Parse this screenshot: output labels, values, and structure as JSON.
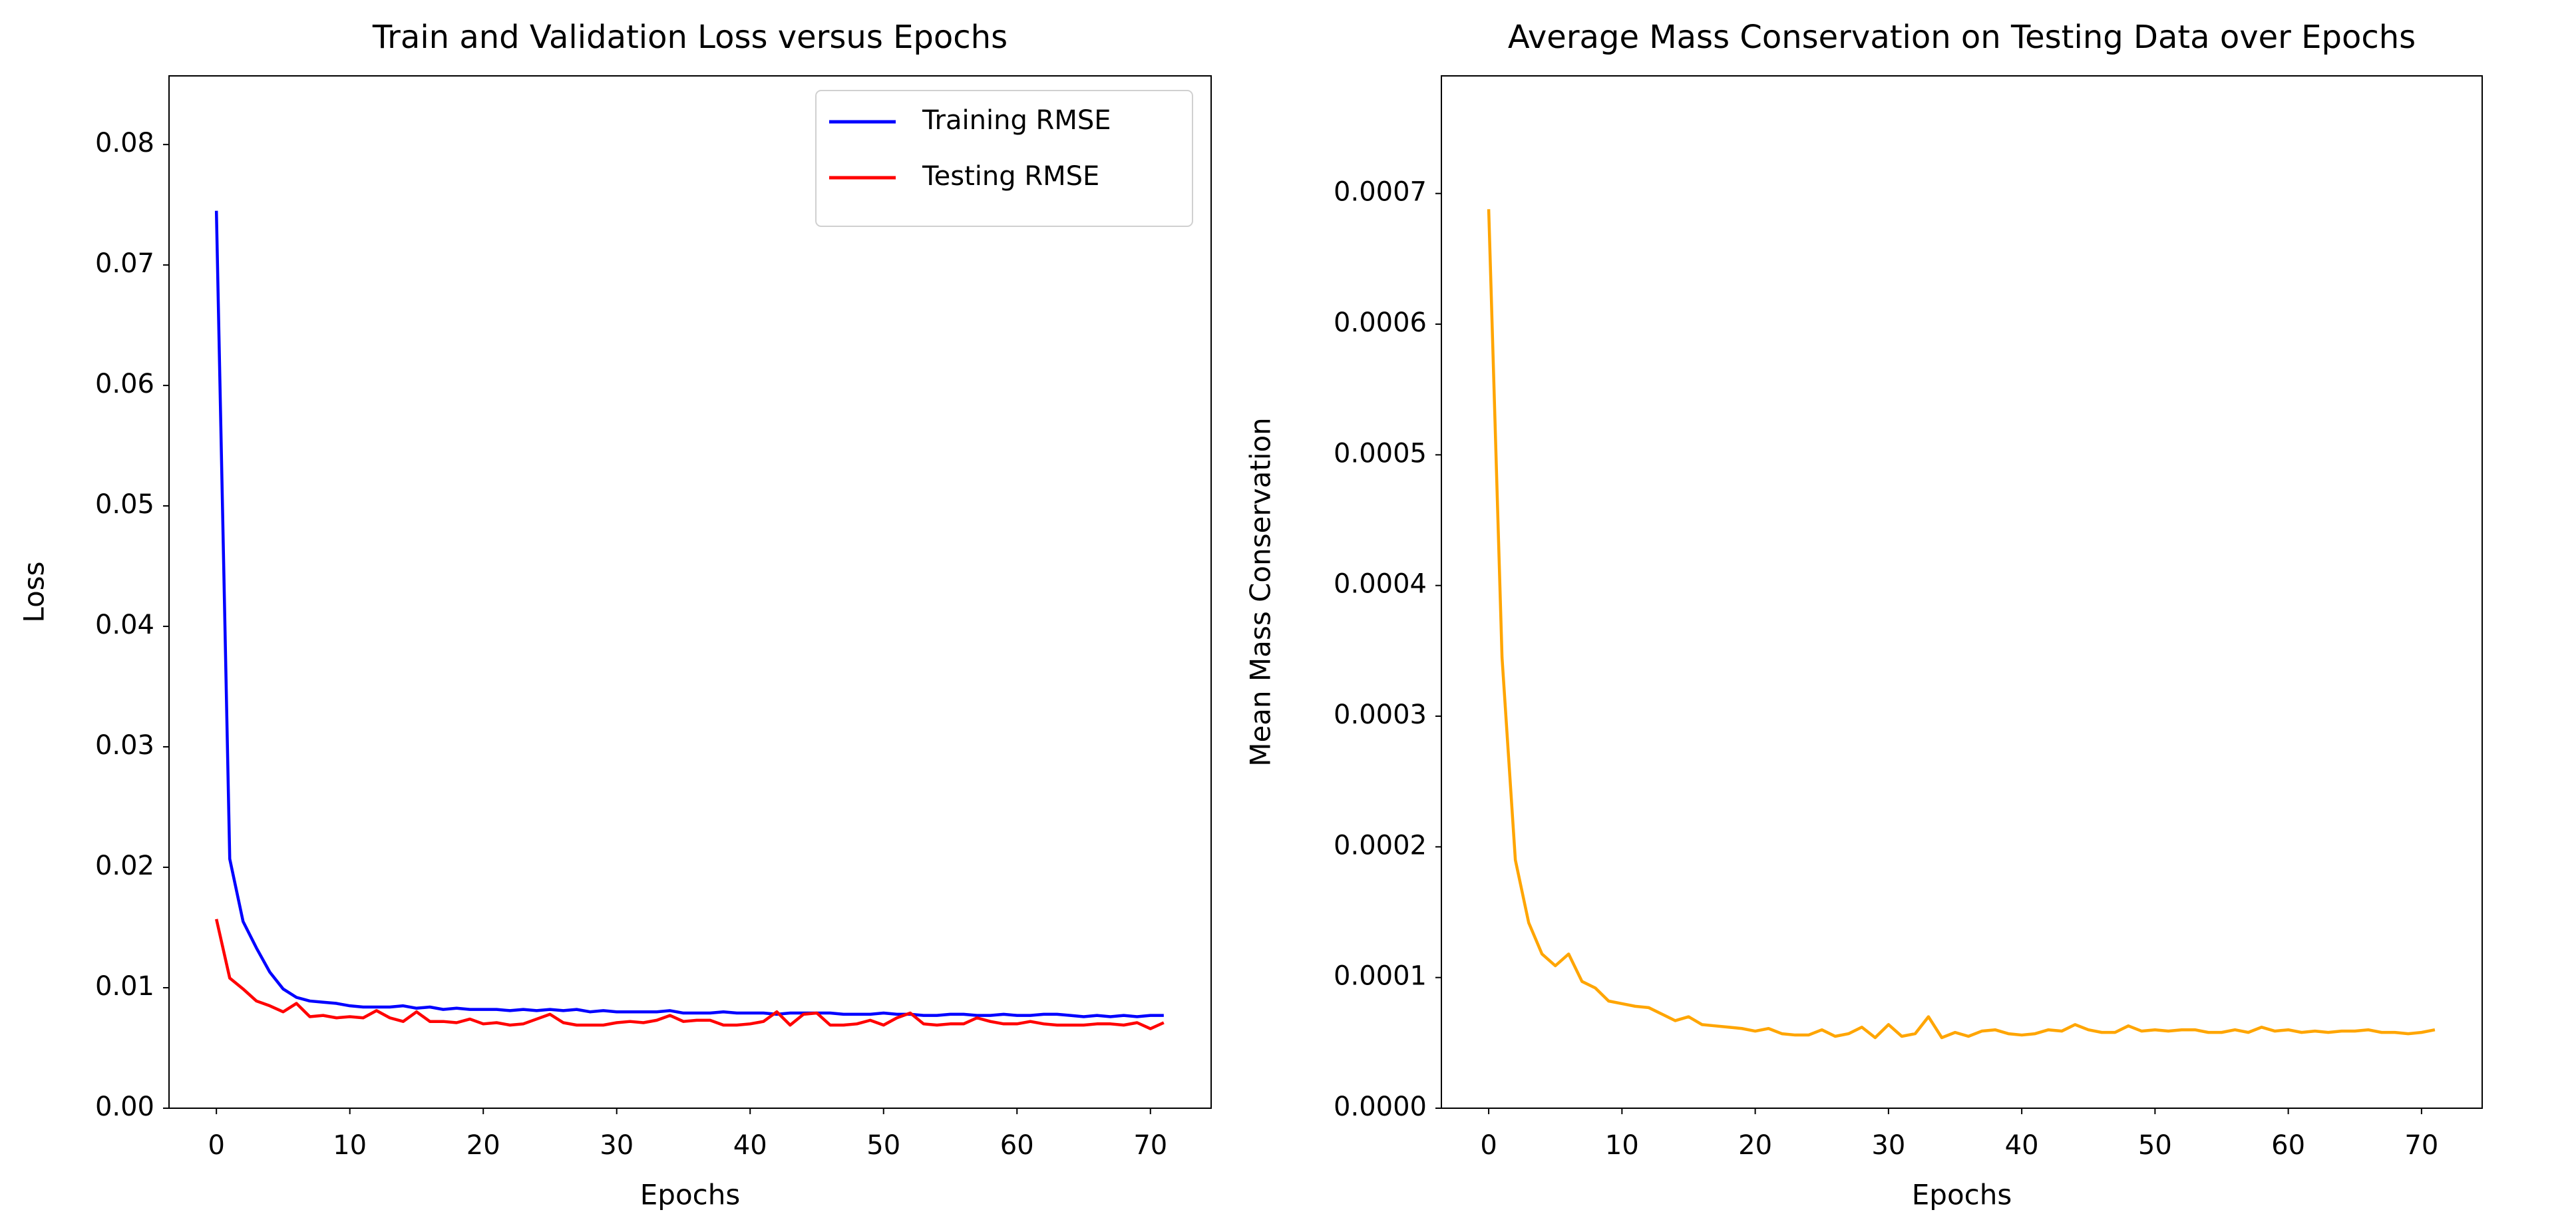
{
  "chart_data": [
    {
      "type": "line",
      "title": "Train and Validation Loss versus Epochs",
      "x_label": "Epochs",
      "y_label": "Loss",
      "x": [
        0,
        1,
        2,
        3,
        4,
        5,
        6,
        7,
        8,
        9,
        10,
        11,
        12,
        13,
        14,
        15,
        16,
        17,
        18,
        19,
        20,
        21,
        22,
        23,
        24,
        25,
        26,
        27,
        28,
        29,
        30,
        31,
        32,
        33,
        34,
        35,
        36,
        37,
        38,
        39,
        40,
        41,
        42,
        43,
        44,
        45,
        46,
        47,
        48,
        49,
        50,
        51,
        52,
        53,
        54,
        55,
        56,
        57,
        58,
        59,
        60,
        61,
        62,
        63,
        64,
        65,
        66,
        67,
        68,
        69,
        70,
        71
      ],
      "series": [
        {
          "name": "Training RMSE",
          "color": "#0000ff",
          "values": [
            0.0745,
            0.0207,
            0.0155,
            0.0133,
            0.0113,
            0.0099,
            0.0092,
            0.0089,
            0.0088,
            0.0087,
            0.0085,
            0.0084,
            0.0084,
            0.0084,
            0.0085,
            0.0083,
            0.0084,
            0.0082,
            0.0083,
            0.0082,
            0.0082,
            0.0082,
            0.0081,
            0.0082,
            0.0081,
            0.0082,
            0.0081,
            0.0082,
            0.008,
            0.0081,
            0.008,
            0.008,
            0.008,
            0.008,
            0.0081,
            0.0079,
            0.0079,
            0.0079,
            0.008,
            0.0079,
            0.0079,
            0.0079,
            0.0078,
            0.0079,
            0.0079,
            0.0079,
            0.0079,
            0.0078,
            0.0078,
            0.0078,
            0.0079,
            0.0078,
            0.0078,
            0.0077,
            0.0077,
            0.0078,
            0.0078,
            0.0077,
            0.0077,
            0.0078,
            0.0077,
            0.0077,
            0.0078,
            0.0078,
            0.0077,
            0.0076,
            0.0077,
            0.0076,
            0.0077,
            0.0076,
            0.0077,
            0.0077
          ]
        },
        {
          "name": "Testing RMSE",
          "color": "#ff0000",
          "values": [
            0.0157,
            0.0108,
            0.0099,
            0.0089,
            0.0085,
            0.008,
            0.0087,
            0.0076,
            0.0077,
            0.0075,
            0.0076,
            0.0075,
            0.0081,
            0.0075,
            0.0072,
            0.008,
            0.0072,
            0.0072,
            0.0071,
            0.0074,
            0.007,
            0.0071,
            0.0069,
            0.007,
            0.0074,
            0.0078,
            0.0071,
            0.0069,
            0.0069,
            0.0069,
            0.0071,
            0.0072,
            0.0071,
            0.0073,
            0.0077,
            0.0072,
            0.0073,
            0.0073,
            0.0069,
            0.0069,
            0.007,
            0.0072,
            0.008,
            0.0069,
            0.0078,
            0.0079,
            0.0069,
            0.0069,
            0.007,
            0.0073,
            0.0069,
            0.0075,
            0.0079,
            0.007,
            0.0069,
            0.007,
            0.007,
            0.0075,
            0.0072,
            0.007,
            0.007,
            0.0072,
            0.007,
            0.0069,
            0.0069,
            0.0069,
            0.007,
            0.007,
            0.0069,
            0.0071,
            0.0066,
            0.0071
          ]
        }
      ],
      "xlim": [
        -3.55,
        74.55
      ],
      "xticks": [
        0,
        10,
        20,
        30,
        40,
        50,
        60,
        70
      ],
      "ylim": [
        0,
        0.0857
      ],
      "yticks": [
        {
          "value": 0,
          "label": "0.00"
        },
        0.01,
        0.02,
        0.03,
        0.04,
        0.05,
        0.06,
        0.07,
        0.08
      ],
      "legend": "upper right"
    },
    {
      "type": "line",
      "title": "Average Mass Conservation on Testing Data over Epochs",
      "x_label": "Epochs",
      "y_label": "Mean Mass Conservation",
      "x": [
        0,
        1,
        2,
        3,
        4,
        5,
        6,
        7,
        8,
        9,
        10,
        11,
        12,
        13,
        14,
        15,
        16,
        17,
        18,
        19,
        20,
        21,
        22,
        23,
        24,
        25,
        26,
        27,
        28,
        29,
        30,
        31,
        32,
        33,
        34,
        35,
        36,
        37,
        38,
        39,
        40,
        41,
        42,
        43,
        44,
        45,
        46,
        47,
        48,
        49,
        50,
        51,
        52,
        53,
        54,
        55,
        56,
        57,
        58,
        59,
        60,
        61,
        62,
        63,
        64,
        65,
        66,
        67,
        68,
        69,
        70,
        71
      ],
      "series": [
        {
          "color": "#ffa500",
          "values": [
            0.000688,
            0.000345,
            0.00019,
            0.000142,
            0.000118,
            0.000109,
            0.000118,
            9.7e-05,
            9.2e-05,
            8.2e-05,
            8e-05,
            7.8e-05,
            7.7e-05,
            7.2e-05,
            6.7e-05,
            7e-05,
            6.4e-05,
            6.3e-05,
            6.2e-05,
            6.1e-05,
            5.9e-05,
            6.1e-05,
            5.7e-05,
            5.6e-05,
            5.6e-05,
            6e-05,
            5.5e-05,
            5.7e-05,
            6.2e-05,
            5.4e-05,
            6.4e-05,
            5.5e-05,
            5.7e-05,
            7e-05,
            5.4e-05,
            5.8e-05,
            5.5e-05,
            5.9e-05,
            6e-05,
            5.7e-05,
            5.6e-05,
            5.7e-05,
            6e-05,
            5.9e-05,
            6.4e-05,
            6e-05,
            5.8e-05,
            5.8e-05,
            6.3e-05,
            5.9e-05,
            6e-05,
            5.9e-05,
            6e-05,
            6e-05,
            5.8e-05,
            5.8e-05,
            6e-05,
            5.8e-05,
            6.2e-05,
            5.9e-05,
            6e-05,
            5.8e-05,
            5.9e-05,
            5.8e-05,
            5.9e-05,
            5.9e-05,
            6e-05,
            5.8e-05,
            5.8e-05,
            5.7e-05,
            5.8e-05,
            6e-05
          ]
        }
      ],
      "xlim": [
        -3.55,
        74.55
      ],
      "xticks": [
        0,
        10,
        20,
        30,
        40,
        50,
        60,
        70
      ],
      "ylim": [
        0,
        0.00079
      ],
      "yticks": [
        {
          "value": 0,
          "label": "0.0000"
        },
        0.0001,
        0.0002,
        0.0003,
        0.0004,
        0.0005,
        0.0006,
        0.0007
      ]
    }
  ]
}
